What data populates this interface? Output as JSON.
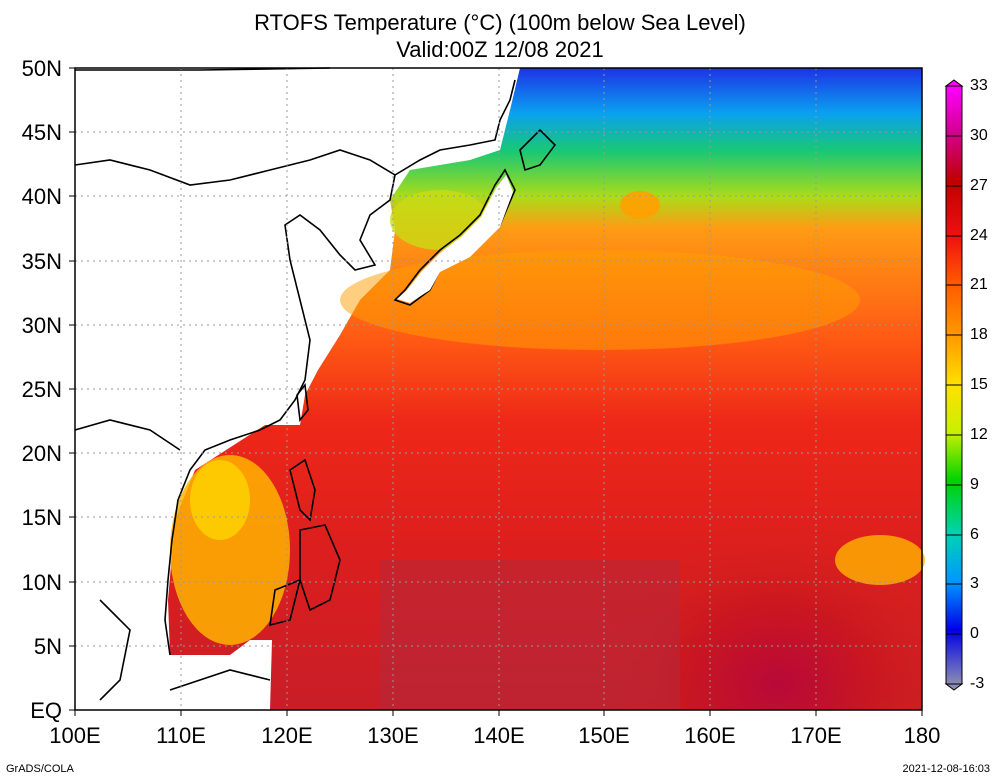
{
  "title": {
    "line1": "RTOFS Temperature (°C) (100m below Sea Level)",
    "line2": "Valid:00Z 12/08 2021"
  },
  "map": {
    "region": "Western North Pacific",
    "lon_range": [
      100,
      180
    ],
    "lat_range": [
      0,
      50
    ],
    "lat_labels": [
      "50N",
      "45N",
      "40N",
      "35N",
      "30N",
      "25N",
      "20N",
      "15N",
      "10N",
      "5N",
      "EQ"
    ],
    "lon_labels": [
      "100E",
      "110E",
      "120E",
      "130E",
      "140E",
      "150E",
      "160E",
      "170E",
      "180"
    ],
    "gridlines": "dotted"
  },
  "colorbar": {
    "labels": [
      "33",
      "30",
      "27",
      "24",
      "21",
      "18",
      "15",
      "12",
      "9",
      "6",
      "3",
      "0",
      "-3"
    ],
    "colors": [
      "#ff00ff",
      "#d9008e",
      "#bd0000",
      "#e60000",
      "#ff3c00",
      "#ff8200",
      "#ffcd00",
      "#e6f000",
      "#6ed200",
      "#00c800",
      "#00c8c8",
      "#0080ff",
      "#0000e6",
      "#7d7db4"
    ]
  },
  "footer": {
    "left": "GrADS/COLA",
    "right": "2021-12-08-16:03"
  }
}
